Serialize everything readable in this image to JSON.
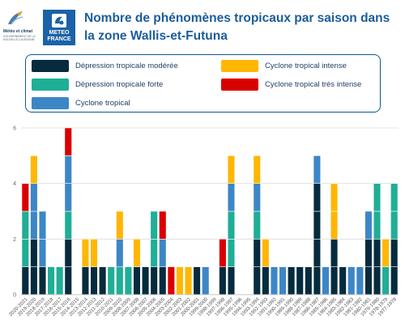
{
  "header": {
    "title_line1": "Nombre de phénomènes tropicaux par saison dans",
    "title_line2": "la zone Wallis-et-Futuna",
    "logo_mc_title": "Météo et climat",
    "logo_mc_sub1": "Gouvernement de la",
    "logo_mc_sub2": "Nouvelle-Calédonie",
    "logo_mf_line1": "METEO",
    "logo_mf_line2": "FRANCE"
  },
  "colors": {
    "title": "#1b5d9b",
    "legend_border": "#0d5a8f",
    "logo_blue": "#1b62a8"
  },
  "chart_data": {
    "type": "bar",
    "stacked": true,
    "ylim": [
      0,
      6
    ],
    "yticks": [
      0,
      2,
      4,
      6
    ],
    "grid": true,
    "legend_position": "top",
    "categories": [
      "2020-2021",
      "2019-2020",
      "2018-2019",
      "2017-2018",
      "2016-2017",
      "2015-2016",
      "2014-2015",
      "2013-2014",
      "2012-2013",
      "2011-2012",
      "2010-2011",
      "2009-2010",
      "2008-2009",
      "2007-2008",
      "2006-2007",
      "2005-2006",
      "2004-2005",
      "2003-2004",
      "2002-2003",
      "2001-2002",
      "2000-2001",
      "1999-2000",
      "1998-1999",
      "1997-1998",
      "1996-1997",
      "1995-1996",
      "1994-1995",
      "1993-1994",
      "1992-1993",
      "1991-1992",
      "1990-1991",
      "1989-1990",
      "1988-1989",
      "1987-1988",
      "1986-1987",
      "1985-1986",
      "1984-1985",
      "1983-1984",
      "1982-1983",
      "1981-1982",
      "1980-1981",
      "1979-1980",
      "1978-1979",
      "1977-1978"
    ],
    "series": [
      {
        "name": "Dépression tropicale modérée",
        "color": "#062b3e",
        "values": [
          1,
          2,
          1,
          0,
          0,
          2,
          0,
          1,
          1,
          1,
          0,
          0,
          0,
          1,
          1,
          1,
          1,
          0,
          0,
          0,
          1,
          0,
          0,
          1,
          1,
          0,
          0,
          2,
          1,
          0,
          0,
          1,
          1,
          1,
          4,
          0,
          2,
          1,
          0,
          0,
          2,
          2,
          0,
          2
        ]
      },
      {
        "name": "Dépression tropicale forte",
        "color": "#1fae96",
        "values": [
          2,
          0,
          0,
          1,
          1,
          1,
          0,
          0,
          0,
          0,
          1,
          1,
          1,
          0,
          0,
          2,
          0,
          0,
          0,
          0,
          0,
          0,
          0,
          0,
          2,
          0,
          0,
          1,
          0,
          0,
          0,
          0,
          0,
          0,
          0,
          0,
          0,
          0,
          0,
          0,
          0,
          2,
          1,
          2
        ]
      },
      {
        "name": "Cyclone tropical",
        "color": "#3d86c6",
        "values": [
          0,
          2,
          2,
          0,
          0,
          2,
          0,
          0,
          0,
          0,
          0,
          1,
          0,
          0,
          0,
          0,
          1,
          0,
          0,
          0,
          0,
          1,
          0,
          0,
          1,
          0,
          0,
          1,
          0,
          1,
          1,
          0,
          0,
          0,
          1,
          1,
          0,
          0,
          1,
          1,
          1,
          0,
          0,
          0
        ]
      },
      {
        "name": "Cyclone tropical intense",
        "color": "#ffb703",
        "values": [
          0,
          1,
          0,
          0,
          0,
          0,
          0,
          1,
          1,
          0,
          0,
          1,
          0,
          1,
          0,
          0,
          0,
          0,
          1,
          1,
          0,
          0,
          0,
          0,
          1,
          0,
          0,
          1,
          1,
          0,
          0,
          0,
          0,
          0,
          0,
          0,
          2,
          0,
          0,
          0,
          0,
          0,
          1,
          0
        ]
      },
      {
        "name": "Cyclone tropical très intense",
        "color": "#d90000",
        "values": [
          1,
          0,
          0,
          0,
          0,
          1,
          0,
          0,
          0,
          0,
          0,
          0,
          0,
          0,
          0,
          0,
          1,
          1,
          0,
          0,
          0,
          0,
          0,
          1,
          0,
          0,
          0,
          0,
          0,
          0,
          0,
          0,
          0,
          0,
          0,
          0,
          0,
          0,
          0,
          0,
          0,
          0,
          0,
          0
        ]
      }
    ],
    "legend_order": [
      0,
      3,
      1,
      4,
      2
    ]
  }
}
